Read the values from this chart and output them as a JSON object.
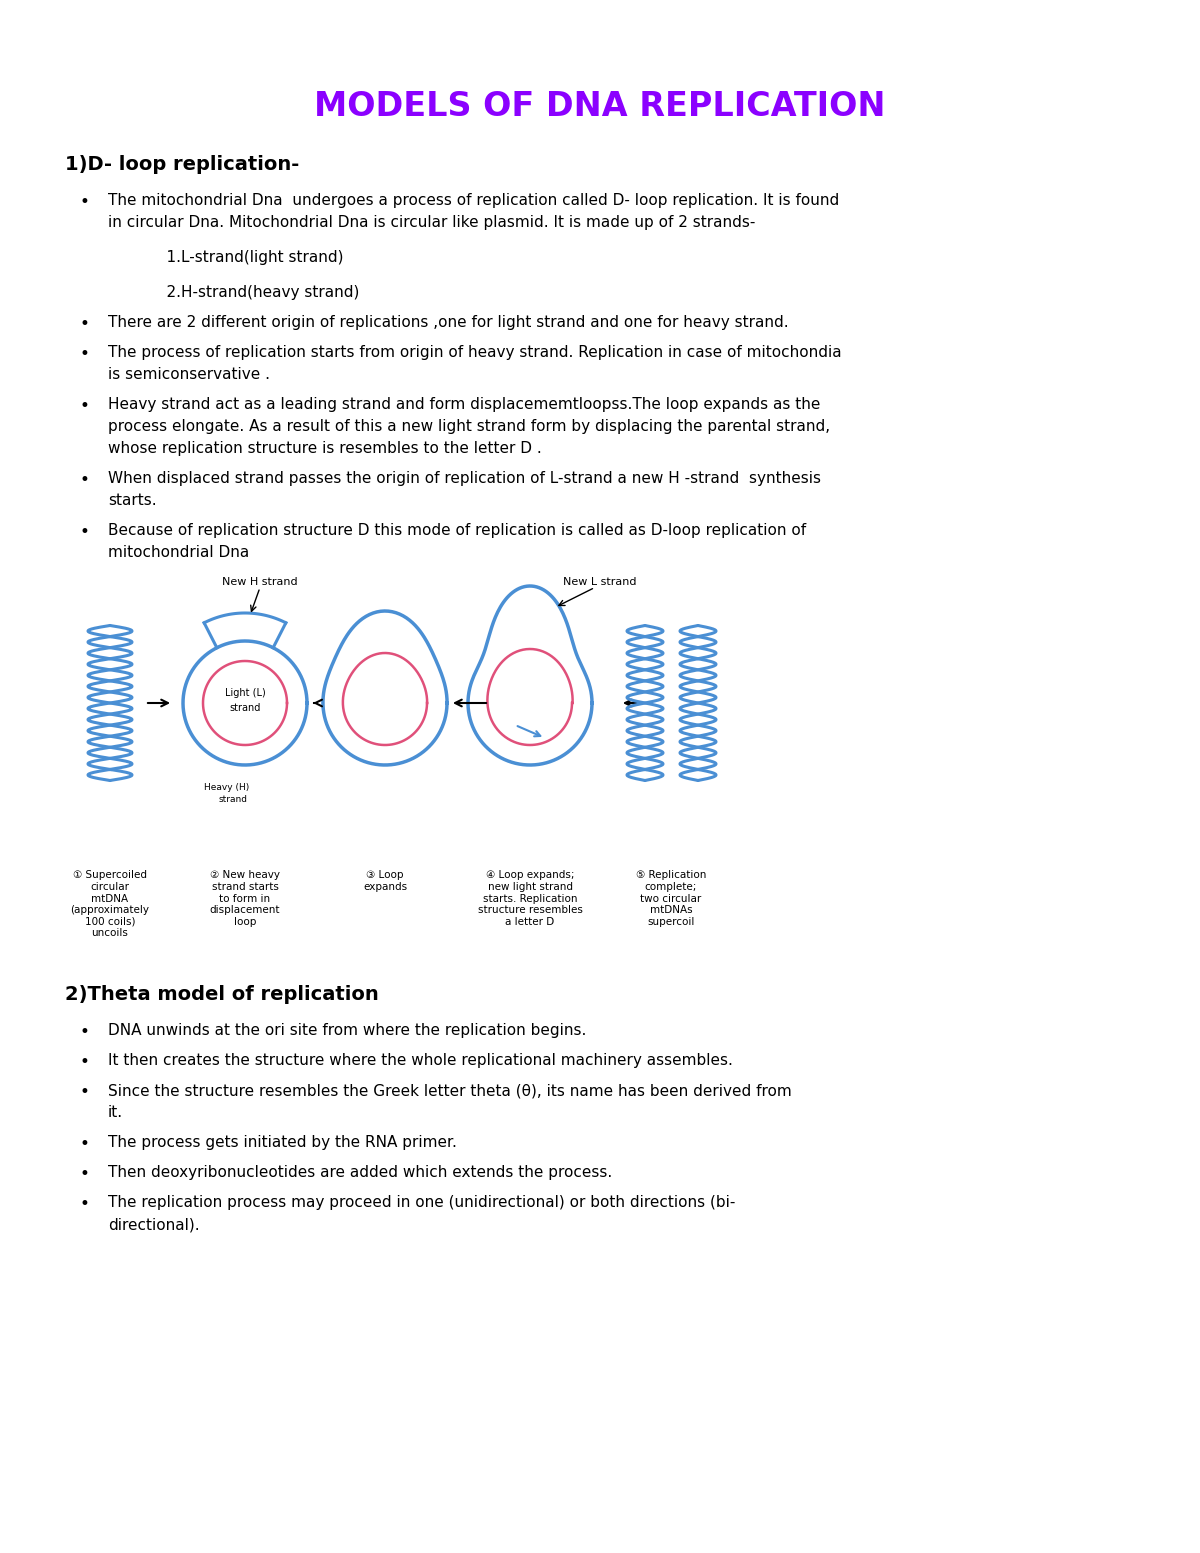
{
  "title": "MODELS OF DNA REPLICATION",
  "title_color": "#8B00FF",
  "title_fontsize": 24,
  "background_color": "#FFFFFF",
  "section1_heading": "1)D- loop replication-",
  "section1_heading_fontsize": 14,
  "section1_bullets": [
    "The mitochondrial Dna  undergoes a process of replication called D- loop replication. It is found\nin circular Dna. Mitochondrial Dna is circular like plasmid. It is made up of 2 strands-\n\n            1.L-strand(light strand)\n\n            2.H-strand(heavy strand)",
    "There are 2 different origin of replications ,one for light strand and one for heavy strand.",
    "The process of replication starts from origin of heavy strand. Replication in case of mitochondia\nis semiconservative .",
    "Heavy strand act as a leading strand and form displacememtloopss.The loop expands as the\nprocess elongate. As a result of this a new light strand form by displacing the parental strand,\nwhose replication structure is resembles to the letter D .",
    "When displaced strand passes the origin of replication of L-strand a new H -strand  synthesis\nstarts.",
    "Because of replication structure D this mode of replication is called as D-loop replication of\nmitochondrial Dna"
  ],
  "section2_heading": "2)Theta model of replication",
  "section2_heading_fontsize": 14,
  "section2_bullets": [
    "DNA unwinds at the ori site from where the replication begins.",
    "It then creates the structure where the whole replicational machinery assembles.",
    "Since the structure resembles the Greek letter theta (θ), its name has been derived from\nit.",
    "The process gets initiated by the RNA primer.",
    "Then deoxyribonucleotides are added which extends the process.",
    "The replication process may proceed in one (unidirectional) or both directions (bi-\ndirectional)."
  ],
  "bullet_fontsize": 11,
  "diagram_caption1": "① Supercoiled\ncircular\nmtDNA\n(approximately\n100 coils)\nuncoils",
  "diagram_caption2": "② New heavy\nstrand starts\nto form in\ndisplacement\nloop",
  "diagram_caption3": "③ Loop\nexpands",
  "diagram_caption4": "④ Loop expands;\nnew light strand\nstarts. Replication\nstructure resembles\na letter D",
  "diagram_caption5": "⑤ Replication\ncomplete;\ntwo circular\nmtDNAs\nsupercoil",
  "dna_color": "#4A8FD4",
  "light_strand_color": "#E0507A",
  "arrow_color": "#000000"
}
